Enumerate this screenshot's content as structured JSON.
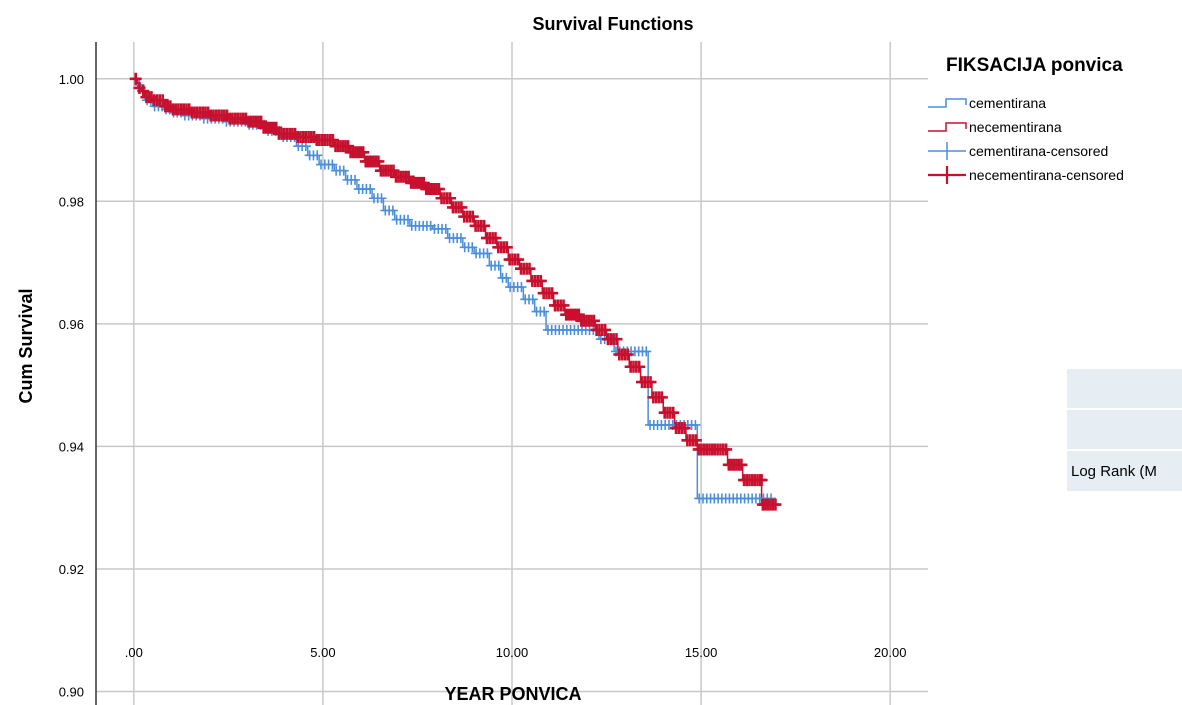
{
  "chart_data": {
    "type": "line",
    "title": "Survival Functions",
    "xlabel": "YEAR PONVICA",
    "ylabel": "Cum Survival",
    "xlim": [
      -1,
      21
    ],
    "ylim": [
      0.896,
      1.006
    ],
    "xticks": [
      0,
      5,
      10,
      15,
      20
    ],
    "xtick_labels": [
      ".00",
      "5.00",
      "10.00",
      "15.00",
      "20.00"
    ],
    "yticks": [
      0.9,
      0.92,
      0.94,
      0.96,
      0.98,
      1.0
    ],
    "ytick_labels": [
      "0.90",
      "0.92",
      "0.94",
      "0.96",
      "0.98",
      "1.00"
    ],
    "grid": true,
    "legend": {
      "title": "FIKSACIJA ponvica",
      "placement": "top-right",
      "entries": [
        "cementirana",
        "necementirana",
        "cementirana-censored",
        "necementirana-censored"
      ]
    },
    "series": [
      {
        "name": "cementirana",
        "color": "#4a8fdc",
        "step": true,
        "points": [
          [
            0.0,
            1.0
          ],
          [
            0.1,
            0.999
          ],
          [
            0.2,
            0.998
          ],
          [
            0.3,
            0.9965
          ],
          [
            0.5,
            0.9955
          ],
          [
            0.8,
            0.995
          ],
          [
            1.0,
            0.9945
          ],
          [
            1.3,
            0.994
          ],
          [
            1.8,
            0.9935
          ],
          [
            2.4,
            0.993
          ],
          [
            3.0,
            0.9925
          ],
          [
            3.5,
            0.9915
          ],
          [
            3.9,
            0.9905
          ],
          [
            4.3,
            0.989
          ],
          [
            4.6,
            0.9875
          ],
          [
            4.9,
            0.986
          ],
          [
            5.3,
            0.985
          ],
          [
            5.6,
            0.9835
          ],
          [
            5.9,
            0.982
          ],
          [
            6.3,
            0.9805
          ],
          [
            6.6,
            0.9785
          ],
          [
            6.9,
            0.977
          ],
          [
            7.3,
            0.976
          ],
          [
            7.9,
            0.9755
          ],
          [
            8.3,
            0.974
          ],
          [
            8.7,
            0.9725
          ],
          [
            9.0,
            0.9715
          ],
          [
            9.4,
            0.9695
          ],
          [
            9.7,
            0.9675
          ],
          [
            9.9,
            0.966
          ],
          [
            10.3,
            0.964
          ],
          [
            10.6,
            0.962
          ],
          [
            10.9,
            0.959
          ],
          [
            12.0,
            0.959
          ],
          [
            12.3,
            0.9575
          ],
          [
            12.7,
            0.9555
          ],
          [
            13.6,
            0.9435
          ],
          [
            14.2,
            0.9435
          ],
          [
            14.9,
            0.9315
          ],
          [
            16.9,
            0.9315
          ]
        ]
      },
      {
        "name": "necementirana",
        "color": "#c8102e",
        "step": true,
        "points": [
          [
            0.0,
            1.0
          ],
          [
            0.1,
            0.9985
          ],
          [
            0.2,
            0.998
          ],
          [
            0.3,
            0.997
          ],
          [
            0.5,
            0.9965
          ],
          [
            0.8,
            0.9955
          ],
          [
            1.0,
            0.995
          ],
          [
            1.5,
            0.9945
          ],
          [
            2.0,
            0.994
          ],
          [
            2.5,
            0.9935
          ],
          [
            3.0,
            0.993
          ],
          [
            3.4,
            0.992
          ],
          [
            3.8,
            0.991
          ],
          [
            4.3,
            0.9905
          ],
          [
            4.8,
            0.99
          ],
          [
            5.3,
            0.989
          ],
          [
            5.7,
            0.988
          ],
          [
            6.1,
            0.9865
          ],
          [
            6.5,
            0.985
          ],
          [
            6.9,
            0.984
          ],
          [
            7.3,
            0.983
          ],
          [
            7.7,
            0.982
          ],
          [
            8.1,
            0.9805
          ],
          [
            8.4,
            0.979
          ],
          [
            8.7,
            0.9775
          ],
          [
            9.0,
            0.976
          ],
          [
            9.3,
            0.974
          ],
          [
            9.6,
            0.9725
          ],
          [
            9.9,
            0.9705
          ],
          [
            10.2,
            0.969
          ],
          [
            10.5,
            0.967
          ],
          [
            10.8,
            0.965
          ],
          [
            11.1,
            0.963
          ],
          [
            11.4,
            0.9615
          ],
          [
            11.8,
            0.9605
          ],
          [
            12.2,
            0.959
          ],
          [
            12.5,
            0.9575
          ],
          [
            12.8,
            0.955
          ],
          [
            13.1,
            0.953
          ],
          [
            13.4,
            0.9505
          ],
          [
            13.7,
            0.948
          ],
          [
            14.0,
            0.9455
          ],
          [
            14.3,
            0.943
          ],
          [
            14.6,
            0.941
          ],
          [
            14.9,
            0.9395
          ],
          [
            15.4,
            0.9395
          ],
          [
            15.7,
            0.937
          ],
          [
            16.1,
            0.9345
          ],
          [
            16.6,
            0.9345
          ],
          [
            16.6,
            0.9305
          ],
          [
            17.0,
            0.9305
          ]
        ]
      }
    ]
  },
  "stat_table": {
    "rows": [
      "",
      "",
      "Log Rank (M"
    ]
  }
}
